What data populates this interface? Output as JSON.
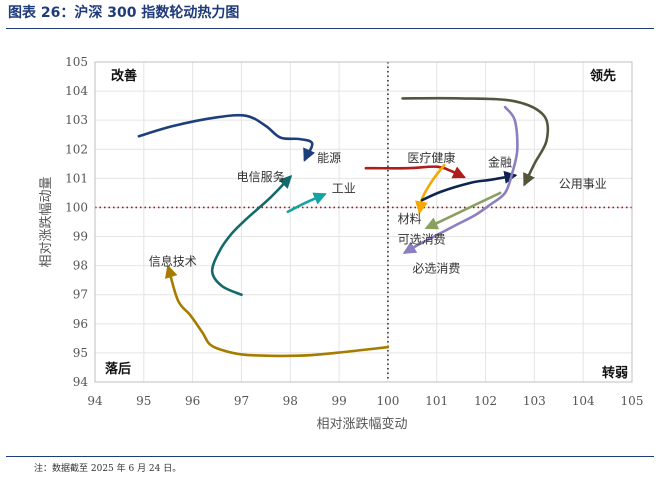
{
  "figure_title": "图表 26：沪深 300 指数轮动热力图",
  "footnote": "注：数据截至 2025 年 6 月 24 日。",
  "chart_data": {
    "type": "line",
    "title": "",
    "xlabel": "相对涨跌幅变动",
    "ylabel": "相对涨跌幅动量",
    "xlim": [
      94,
      105
    ],
    "ylim": [
      94,
      105
    ],
    "xticks": [
      "94",
      "95",
      "96",
      "97",
      "98",
      "99",
      "100",
      "101",
      "102",
      "103",
      "104",
      "105"
    ],
    "yticks": [
      "94",
      "95",
      "96",
      "97",
      "98",
      "99",
      "100",
      "101",
      "102",
      "103",
      "104",
      "105"
    ],
    "reference_lines": {
      "x": 100,
      "y": 100
    },
    "quadrants": {
      "top_left": "改善",
      "top_right": "领先",
      "bottom_left": "落后",
      "bottom_right": "转弱"
    },
    "series": [
      {
        "name": "能源",
        "color": "#1f3f7a",
        "x": [
          94.9,
          95.6,
          96.5,
          97.1,
          97.5,
          97.8,
          98.2,
          98.45,
          98.3
        ],
        "y": [
          102.45,
          102.8,
          103.1,
          103.15,
          102.8,
          102.4,
          102.35,
          102.2,
          101.65
        ]
      },
      {
        "name": "电信服务",
        "color": "#146a6a",
        "x": [
          97.0,
          96.6,
          96.4,
          96.55,
          96.8,
          97.1,
          97.6,
          98.0
        ],
        "y": [
          97.0,
          97.3,
          97.8,
          98.5,
          99.1,
          99.6,
          100.35,
          101.05
        ]
      },
      {
        "name": "工业",
        "color": "#17a3a3",
        "x": [
          97.95,
          98.3,
          98.7
        ],
        "y": [
          99.85,
          100.15,
          100.45
        ]
      },
      {
        "name": "信息技术",
        "color": "#a67c00",
        "x": [
          100.0,
          99.2,
          98.4,
          97.6,
          97.0,
          96.6,
          96.35,
          96.2,
          95.95,
          95.7,
          95.5
        ],
        "y": [
          95.2,
          95.05,
          94.92,
          94.9,
          94.95,
          95.1,
          95.3,
          95.7,
          96.3,
          96.8,
          97.95
        ]
      },
      {
        "name": "医疗健康",
        "color": "#b01c1c",
        "x": [
          99.55,
          100.4,
          101.0,
          101.3,
          101.55
        ],
        "y": [
          101.35,
          101.35,
          101.4,
          101.25,
          101.05
        ]
      },
      {
        "name": "材料",
        "color": "#f5a800",
        "x": [
          101.15,
          100.9,
          100.7,
          100.65
        ],
        "y": [
          101.45,
          100.9,
          100.3,
          99.85
        ]
      },
      {
        "name": "金融",
        "color": "#0f2350",
        "x": [
          100.7,
          101.1,
          101.7,
          102.1,
          102.6
        ],
        "y": [
          100.25,
          100.55,
          100.85,
          100.95,
          101.1
        ]
      },
      {
        "name": "公用事业",
        "color": "#55553d",
        "x": [
          100.3,
          101.5,
          102.6,
          103.2,
          103.25,
          103.0,
          102.8
        ],
        "y": [
          103.75,
          103.75,
          103.65,
          103.15,
          102.3,
          101.5,
          100.8
        ]
      },
      {
        "name": "可选消费",
        "color": "#8aa060",
        "x": [
          102.3,
          101.8,
          101.3,
          100.8
        ],
        "y": [
          100.5,
          100.1,
          99.7,
          99.3
        ]
      },
      {
        "name": "必选消费",
        "color": "#8a7fc0",
        "x": [
          102.4,
          102.6,
          102.65,
          102.55,
          102.4,
          102.1,
          101.8,
          101.4,
          101.0,
          100.6,
          100.35
        ],
        "y": [
          103.45,
          103.0,
          102.0,
          101.2,
          100.5,
          100.1,
          99.75,
          99.4,
          99.05,
          98.7,
          98.45
        ]
      }
    ],
    "labels": [
      {
        "text": "能源",
        "x": 98.55,
        "y": 101.7
      },
      {
        "text": "电信服务",
        "x": 96.9,
        "y": 101.05
      },
      {
        "text": "工业",
        "x": 98.85,
        "y": 100.65
      },
      {
        "text": "信息技术",
        "x": 95.1,
        "y": 98.15
      },
      {
        "text": "医疗健康",
        "x": 100.4,
        "y": 101.7
      },
      {
        "text": "金融",
        "x": 102.05,
        "y": 101.55
      },
      {
        "text": "公用事业",
        "x": 103.5,
        "y": 100.8
      },
      {
        "text": "材料",
        "x": 100.2,
        "y": 99.6
      },
      {
        "text": "可选消费",
        "x": 100.2,
        "y": 98.9
      },
      {
        "text": "必选消费",
        "x": 100.5,
        "y": 97.9
      }
    ]
  }
}
